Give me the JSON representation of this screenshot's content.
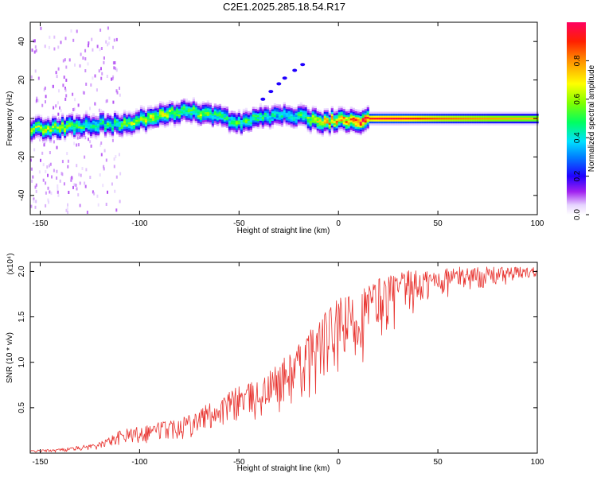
{
  "title": "C2E1.2025.285.18.54.R17",
  "chart_data": [
    {
      "type": "heatmap",
      "name": "spectrogram",
      "xlabel": "Height of straight line (km)",
      "ylabel": "Frequency (Hz)",
      "xlim": [
        -155,
        100
      ],
      "ylim": [
        -50,
        50
      ],
      "xticks": [
        -150,
        -100,
        -50,
        0,
        50,
        100
      ],
      "yticks": [
        -40,
        -20,
        0,
        20,
        40
      ],
      "colorbar": {
        "label": "Normalized spectral amplitude",
        "range": [
          0,
          1
        ],
        "ticks": [
          0.0,
          0.2,
          0.4,
          0.6,
          0.8
        ]
      },
      "ridge_x": [
        -155,
        -145,
        -135,
        -125,
        -115,
        -105,
        -95,
        -85,
        -78,
        -70,
        -60,
        -50,
        -40,
        -30,
        -20,
        -10,
        0,
        10,
        15,
        20,
        30,
        50,
        70,
        100
      ],
      "ridge_freq": [
        -5,
        -5,
        -4,
        -3,
        -3,
        -2,
        0,
        2,
        4,
        3,
        1,
        -2,
        0,
        2,
        1,
        -2,
        -1,
        -1,
        0,
        0,
        0,
        0,
        0,
        0
      ],
      "ridge_amp": [
        0.55,
        0.6,
        0.55,
        0.45,
        0.45,
        0.55,
        0.6,
        0.6,
        0.5,
        0.55,
        0.45,
        0.5,
        0.45,
        0.4,
        0.45,
        0.7,
        0.75,
        0.85,
        0.9,
        0.95,
        0.95,
        0.85,
        0.8,
        0.75
      ]
    },
    {
      "type": "line",
      "name": "snr",
      "xlabel": "Height of straight line (km)",
      "ylabel": "SNR (10 * v/v)",
      "scale_label": "(x10⁴)",
      "color": "#e8332f",
      "xlim": [
        -155,
        100
      ],
      "ylim": [
        0,
        2.1
      ],
      "xticks": [
        -150,
        -100,
        -50,
        0,
        50,
        100
      ],
      "yticks": [
        0.5,
        1.0,
        1.5,
        2.0
      ],
      "ytick_labels": [
        "0.5",
        "1.0",
        "1.5",
        "2.0"
      ],
      "envelope_x": [
        -155,
        -140,
        -130,
        -120,
        -110,
        -100,
        -90,
        -80,
        -70,
        -60,
        -50,
        -40,
        -30,
        -20,
        -10,
        0,
        10,
        20,
        30,
        40,
        60,
        80,
        100
      ],
      "envelope_upper": [
        0.03,
        0.05,
        0.08,
        0.12,
        0.25,
        0.3,
        0.35,
        0.4,
        0.5,
        0.6,
        0.75,
        0.8,
        1.0,
        1.2,
        1.5,
        1.7,
        1.8,
        1.95,
        2.0,
        2.02,
        2.05,
        2.05,
        2.05
      ],
      "envelope_lower": [
        0.0,
        0.0,
        0.01,
        0.02,
        0.03,
        0.04,
        0.06,
        0.08,
        0.1,
        0.15,
        0.2,
        0.2,
        0.25,
        0.3,
        0.4,
        0.5,
        0.7,
        1.0,
        1.2,
        1.4,
        1.7,
        1.75,
        1.9
      ]
    }
  ]
}
